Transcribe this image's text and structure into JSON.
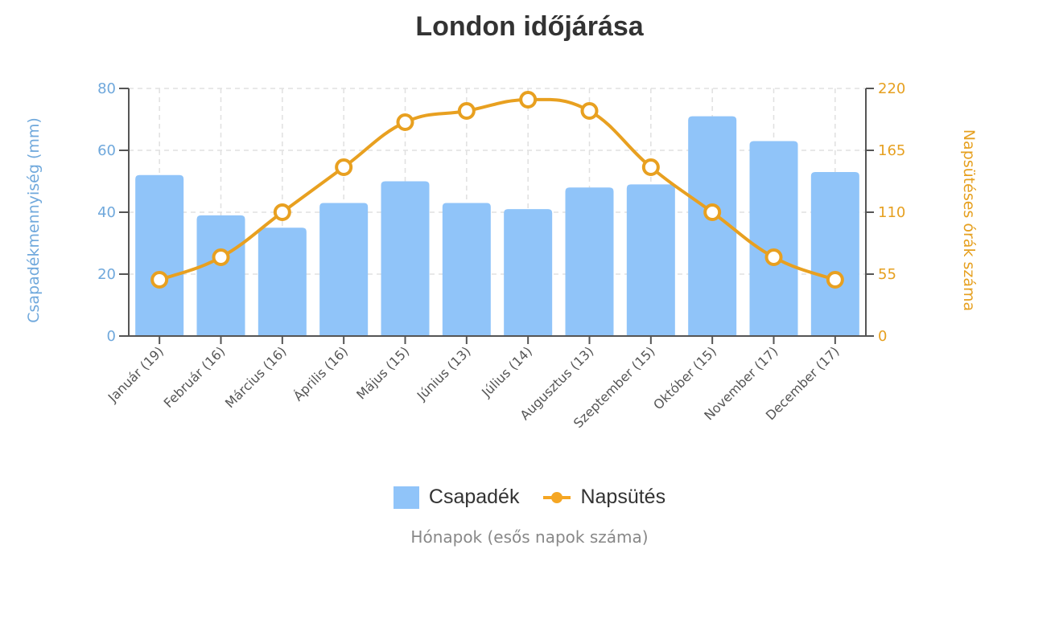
{
  "title": "London időjárása",
  "legend": {
    "bar_label": "Csapadék",
    "line_label": "Napsütés"
  },
  "x_axis_title": "Hónapok (esős napok száma)",
  "y_left_title": "Csapadékmennyiség (mm)",
  "y_right_title": "Napsütéses órák száma",
  "colors": {
    "bar": "#90c4f9",
    "line": "#f5a623",
    "left_axis": "#6fa8dc",
    "right_axis": "#e6a020",
    "title": "#333333"
  },
  "chart_data": {
    "type": "bar",
    "title": "London időjárása",
    "xlabel": "Hónapok (esős napok száma)",
    "ylabel": "Csapadékmennyiség (mm)",
    "ylabel_right": "Napsütéses órák száma",
    "categories": [
      "Január (19)",
      "Február (16)",
      "Március (16)",
      "Április (16)",
      "Május (15)",
      "Június (13)",
      "Július (14)",
      "Augusztus (13)",
      "Szeptember (15)",
      "Október (15)",
      "November (17)",
      "December (17)"
    ],
    "series": [
      {
        "name": "Csapadék",
        "type": "bar",
        "axis": "left",
        "values": [
          52,
          39,
          35,
          43,
          50,
          43,
          41,
          48,
          49,
          71,
          63,
          53
        ]
      },
      {
        "name": "Napsütés",
        "type": "line",
        "axis": "right",
        "values": [
          50,
          70,
          110,
          150,
          190,
          200,
          210,
          200,
          150,
          110,
          70,
          50
        ]
      }
    ],
    "ylim": [
      0,
      80
    ],
    "ylim_right": [
      0,
      220
    ],
    "yticks": [
      0,
      20,
      40,
      60,
      80
    ],
    "yticks_right": [
      0,
      55,
      110,
      165,
      220
    ],
    "grid": true,
    "legend_position": "bottom"
  }
}
